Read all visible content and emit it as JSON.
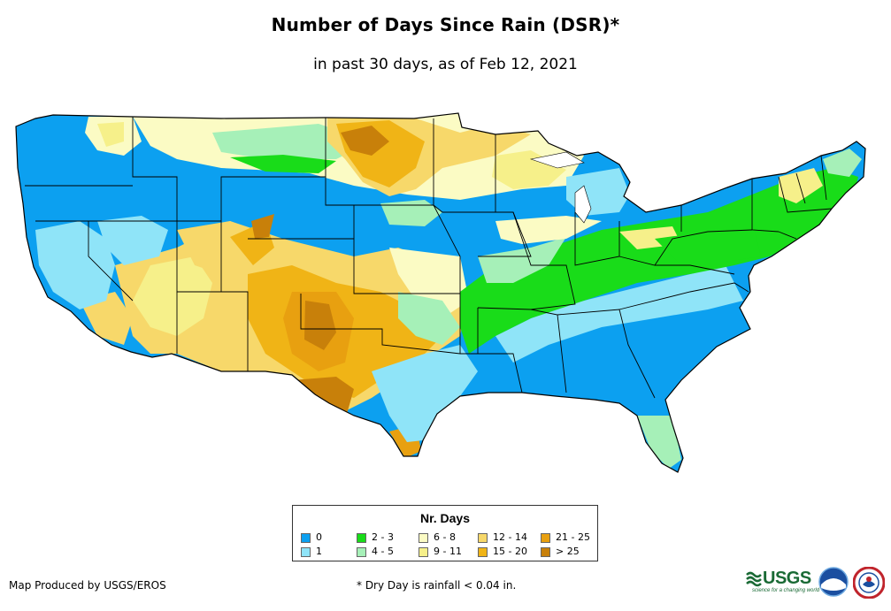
{
  "header": {
    "title": "Number of Days Since Rain (DSR)*",
    "subtitle": "in past 30 days, as of Feb 12, 2021"
  },
  "legend": {
    "title": "Nr. Days",
    "items": [
      {
        "label": "0",
        "color": "#0ca0f0"
      },
      {
        "label": "1",
        "color": "#8fe4f8"
      },
      {
        "label": "2 - 3",
        "color": "#19dc19"
      },
      {
        "label": "4 - 5",
        "color": "#a6f0b8"
      },
      {
        "label": "6 - 8",
        "color": "#fbfbc4"
      },
      {
        "label": "9 - 11",
        "color": "#f6f08a"
      },
      {
        "label": "12 - 14",
        "color": "#f7d86a"
      },
      {
        "label": "15 - 20",
        "color": "#f0b416"
      },
      {
        "label": "21 - 25",
        "color": "#e8a010"
      },
      {
        "label": "> 25",
        "color": "#c8800a"
      }
    ]
  },
  "footer": {
    "credit": "Map Produced by USGS/EROS",
    "footnote": "* Dry Day is rainfall < 0.04 in."
  },
  "logos": {
    "usgs_text": "USGS",
    "usgs_tagline": "science for a changing world",
    "noaa_text": "noaa"
  },
  "colors": {
    "state_border": "#000000",
    "map_outline": "#000000"
  }
}
